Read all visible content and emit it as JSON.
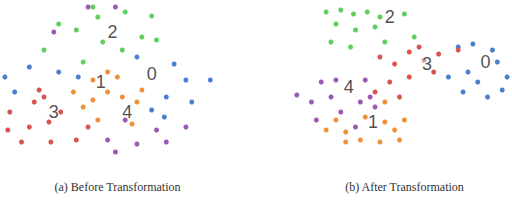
{
  "chart_data": [
    {
      "type": "scatter",
      "title": "(a) Before Transformation",
      "xlim": [
        0,
        230
      ],
      "ylim": [
        0,
        160
      ],
      "grid": false,
      "tick_labels": false,
      "series": [
        {
          "color": "#4a7fd0",
          "values": [
            [
              5,
              75
            ],
            [
              30,
              65
            ],
            [
              15,
              90
            ],
            [
              80,
              75
            ],
            [
              60,
              70
            ],
            [
              140,
              55
            ],
            [
              178,
              62
            ],
            [
              190,
              78
            ],
            [
              215,
              78
            ],
            [
              170,
              95
            ],
            [
              196,
              100
            ],
            [
              168,
              115
            ],
            [
              155,
              108
            ]
          ]
        },
        {
          "color": "#f0913a",
          "values": [
            [
              75,
              90
            ],
            [
              95,
              78
            ],
            [
              120,
              75
            ],
            [
              110,
              70
            ],
            [
              95,
              98
            ],
            [
              110,
              90
            ],
            [
              125,
              95
            ],
            [
              140,
              100
            ],
            [
              100,
              118
            ],
            [
              135,
              122
            ],
            [
              145,
              88
            ],
            [
              85,
              105
            ]
          ]
        },
        {
          "color": "#5ccf5c",
          "values": [
            [
              95,
              5
            ],
            [
              100,
              15
            ],
            [
              128,
              10
            ],
            [
              155,
              14
            ],
            [
              60,
              22
            ],
            [
              78,
              28
            ],
            [
              145,
              35
            ],
            [
              105,
              40
            ],
            [
              45,
              48
            ],
            [
              125,
              48
            ],
            [
              160,
              38
            ],
            [
              85,
              60
            ]
          ]
        },
        {
          "color": "#d9534f",
          "values": [
            [
              10,
              110
            ],
            [
              35,
              100
            ],
            [
              45,
              95
            ],
            [
              62,
              110
            ],
            [
              8,
              128
            ],
            [
              30,
              125
            ],
            [
              50,
              120
            ],
            [
              90,
              125
            ],
            [
              22,
              140
            ],
            [
              52,
              140
            ],
            [
              78,
              138
            ],
            [
              40,
              88
            ]
          ]
        },
        {
          "color": "#9b59b6",
          "values": [
            [
              90,
              5
            ],
            [
              118,
              5
            ],
            [
              55,
              30
            ],
            [
              110,
              138
            ],
            [
              128,
              118
            ],
            [
              140,
              142
            ],
            [
              170,
              140
            ],
            [
              160,
              128
            ],
            [
              118,
              150
            ],
            [
              190,
              125
            ]
          ]
        }
      ],
      "annotations": [
        {
          "text": "0",
          "x": 155,
          "y": 72
        },
        {
          "text": "1",
          "x": 103,
          "y": 80
        },
        {
          "text": "2",
          "x": 115,
          "y": 30
        },
        {
          "text": "3",
          "x": 55,
          "y": 110
        },
        {
          "text": "4",
          "x": 130,
          "y": 110
        }
      ]
    },
    {
      "type": "scatter",
      "title": "(b) After Transformation",
      "xlim": [
        0,
        230
      ],
      "ylim": [
        0,
        160
      ],
      "grid": false,
      "tick_labels": false,
      "series": [
        {
          "color": "#4a7fd0",
          "values": [
            [
              175,
              45
            ],
            [
              190,
              42
            ],
            [
              210,
              48
            ],
            [
              215,
              60
            ],
            [
              185,
              70
            ],
            [
              195,
              80
            ],
            [
              220,
              88
            ],
            [
              205,
              95
            ],
            [
              180,
              90
            ],
            [
              165,
              75
            ],
            [
              225,
              75
            ]
          ]
        },
        {
          "color": "#f0913a",
          "values": [
            [
              50,
              118
            ],
            [
              60,
              130
            ],
            [
              80,
              115
            ],
            [
              100,
              120
            ],
            [
              110,
              128
            ],
            [
              120,
              118
            ],
            [
              75,
              138
            ],
            [
              95,
              140
            ],
            [
              115,
              138
            ],
            [
              40,
              128
            ],
            [
              60,
              140
            ],
            [
              100,
              100
            ]
          ]
        },
        {
          "color": "#5ccf5c",
          "values": [
            [
              40,
              10
            ],
            [
              55,
              8
            ],
            [
              68,
              12
            ],
            [
              82,
              10
            ],
            [
              95,
              15
            ],
            [
              50,
              22
            ],
            [
              70,
              28
            ],
            [
              90,
              25
            ],
            [
              120,
              12
            ],
            [
              45,
              40
            ],
            [
              100,
              40
            ],
            [
              130,
              35
            ],
            [
              65,
              45
            ]
          ]
        },
        {
          "color": "#d9534f",
          "values": [
            [
              95,
              55
            ],
            [
              110,
              62
            ],
            [
              125,
              50
            ],
            [
              135,
              45
            ],
            [
              140,
              58
            ],
            [
              150,
              70
            ],
            [
              125,
              75
            ],
            [
              105,
              80
            ],
            [
              155,
              52
            ],
            [
              175,
              48
            ],
            [
              115,
              95
            ],
            [
              90,
              90
            ]
          ]
        },
        {
          "color": "#9b59b6",
          "values": [
            [
              10,
              93
            ],
            [
              35,
              80
            ],
            [
              50,
              78
            ],
            [
              80,
              78
            ],
            [
              25,
              100
            ],
            [
              45,
              95
            ],
            [
              55,
              110
            ],
            [
              75,
              100
            ],
            [
              90,
              105
            ],
            [
              30,
              118
            ],
            [
              70,
              125
            ],
            [
              85,
              95
            ]
          ]
        }
      ],
      "annotations": [
        {
          "text": "0",
          "x": 203,
          "y": 60
        },
        {
          "text": "1",
          "x": 88,
          "y": 120
        },
        {
          "text": "2",
          "x": 105,
          "y": 15
        },
        {
          "text": "3",
          "x": 143,
          "y": 62
        },
        {
          "text": "4",
          "x": 63,
          "y": 85
        }
      ]
    }
  ]
}
